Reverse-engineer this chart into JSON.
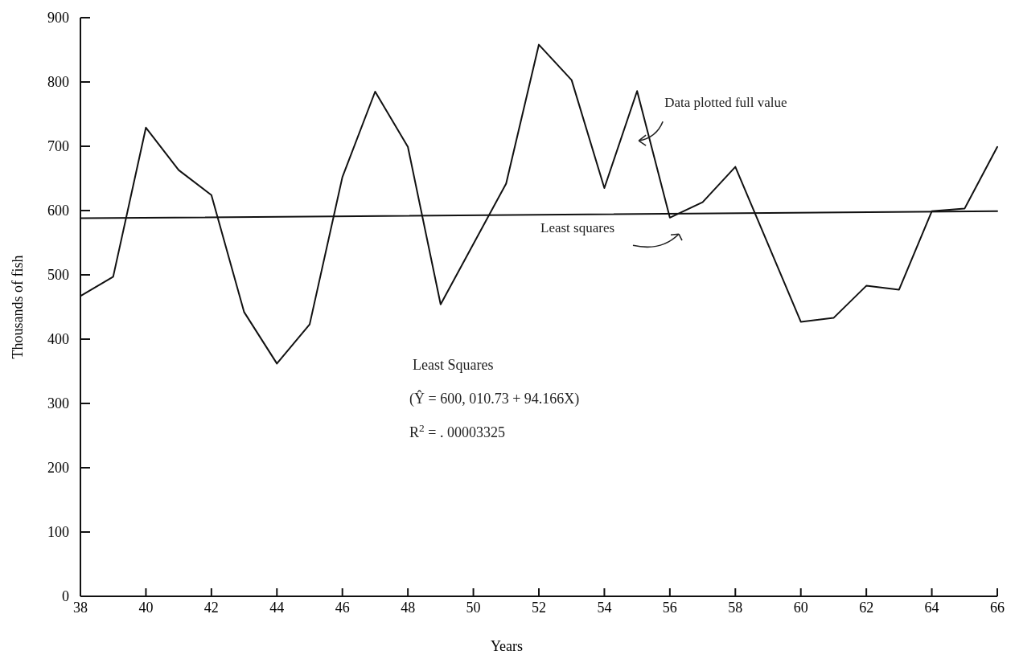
{
  "chart_data": {
    "type": "line",
    "xlabel": "Years",
    "ylabel": "Thousands of fish",
    "xlim": [
      38,
      66
    ],
    "xticks": [
      38,
      40,
      42,
      44,
      46,
      48,
      50,
      52,
      54,
      56,
      58,
      60,
      62,
      64,
      66
    ],
    "ylim": [
      0,
      900
    ],
    "yticks": [
      0,
      100,
      200,
      300,
      400,
      500,
      600,
      700,
      800,
      900
    ],
    "grid": false,
    "marker": "none",
    "series": [
      {
        "name": "Data plotted full value",
        "color": "#111111",
        "x": [
          38,
          39,
          40,
          41,
          42,
          43,
          44,
          45,
          46,
          47,
          48,
          49,
          51,
          52,
          53,
          54,
          55,
          56,
          57,
          58,
          60,
          61,
          62,
          63,
          64,
          65,
          66
        ],
        "values": [
          467,
          497,
          729,
          663,
          624,
          442,
          362,
          423,
          652,
          785,
          699,
          454,
          642,
          858,
          803,
          635,
          786,
          589,
          613,
          668,
          427,
          433,
          483,
          477,
          599,
          603,
          699
        ]
      },
      {
        "name": "Least squares",
        "color": "#111111",
        "x": [
          38,
          66
        ],
        "values": [
          588,
          599
        ]
      }
    ],
    "annotations": [
      "Least Squares",
      "(Ŷ  = 600, 010.73 + 94.166X)",
      "R$^{2}$ = . 00003325"
    ]
  }
}
